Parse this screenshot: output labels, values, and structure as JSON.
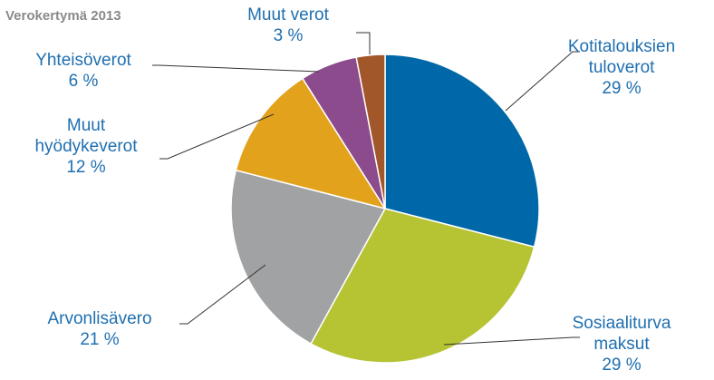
{
  "chart_data": {
    "type": "pie",
    "title": "Verokertymä 2013",
    "categories": [
      "Kotitalouksien\ntuloverot",
      "Sosiaaliturva\nmaksut",
      "Arvonlisävero",
      "Muut\nhyödykeverot",
      "Yhteisöverot",
      "Muut verot"
    ],
    "values": [
      29,
      29,
      21,
      12,
      6,
      3
    ],
    "value_labels": [
      "29 %",
      "29 %",
      "21 %",
      "12 %",
      "6 %",
      "3 %"
    ],
    "colors": [
      "#0068a8",
      "#b6c333",
      "#a1a2a4",
      "#e3a21c",
      "#8c4b8c",
      "#a2572b"
    ]
  }
}
